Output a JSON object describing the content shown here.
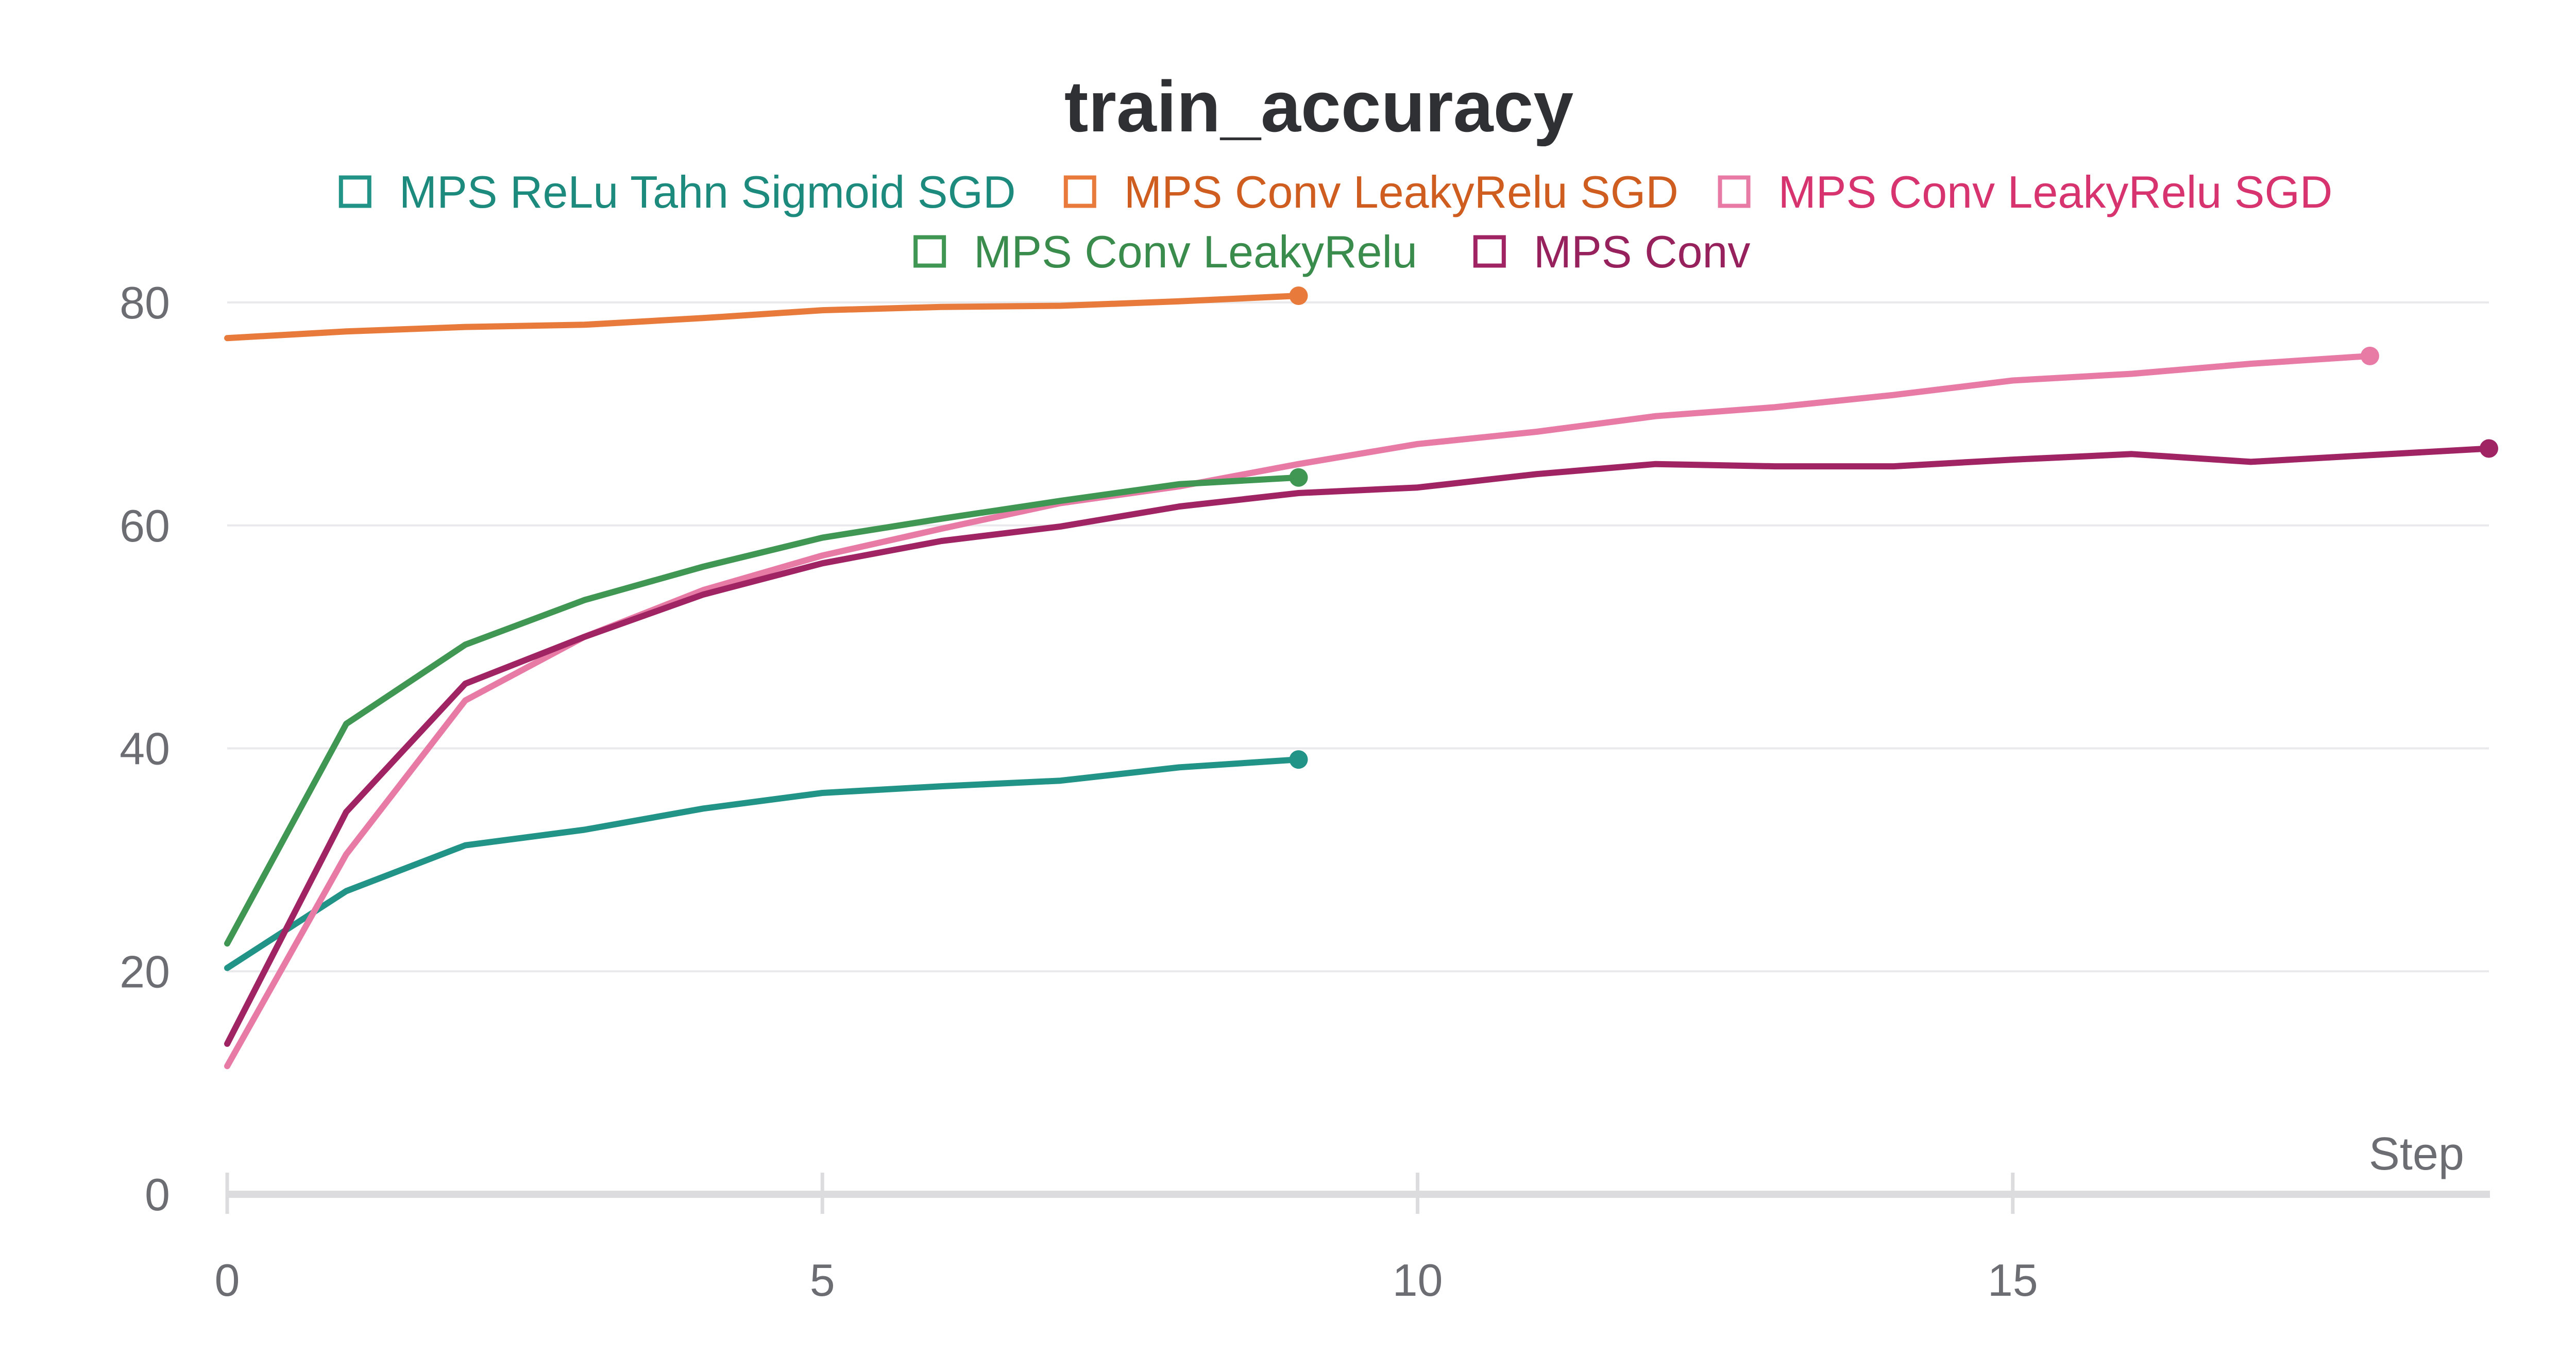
{
  "chart_data": {
    "type": "line",
    "title": "train_accuracy",
    "xlabel": "Step",
    "ylabel": "",
    "xlim": [
      0,
      19
    ],
    "ylim": [
      0,
      80
    ],
    "x_ticks": [
      0,
      5,
      10,
      15
    ],
    "y_ticks": [
      0,
      20,
      40,
      60,
      80
    ],
    "grid": true,
    "legend_position": "top",
    "series": [
      {
        "name": "MPS ReLu Tahn Sigmoid SGD",
        "color": "#229487",
        "label_color": "#1d8a7e",
        "x": [
          0,
          1,
          2,
          3,
          4,
          5,
          6,
          7,
          8,
          9
        ],
        "values": [
          20.3,
          27.2,
          31.3,
          32.7,
          34.6,
          36.0,
          36.6,
          37.1,
          38.3,
          39.0
        ]
      },
      {
        "name": "MPS Conv LeakyRelu SGD",
        "color": "#e87b3b",
        "label_color": "#cf5d20",
        "x": [
          0,
          1,
          2,
          3,
          4,
          5,
          6,
          7,
          8,
          9
        ],
        "values": [
          76.8,
          77.4,
          77.8,
          78.0,
          78.6,
          79.3,
          79.6,
          79.7,
          80.1,
          80.6
        ]
      },
      {
        "name": "MPS Conv LeakyRelu SGD",
        "color": "#e87ba6",
        "label_color": "#d6336f",
        "x": [
          0,
          1,
          2,
          3,
          4,
          5,
          6,
          7,
          8,
          9,
          10,
          11,
          12,
          13,
          14,
          15,
          16,
          17,
          18
        ],
        "values": [
          11.5,
          30.5,
          44.3,
          50.0,
          54.2,
          57.3,
          59.7,
          62.0,
          63.5,
          65.5,
          67.3,
          68.4,
          69.8,
          70.6,
          71.7,
          73.0,
          73.6,
          74.5,
          75.2
        ]
      },
      {
        "name": "MPS Conv LeakyRelu",
        "color": "#3f9753",
        "label_color": "#3a8c4d",
        "x": [
          0,
          1,
          2,
          3,
          4,
          5,
          6,
          7,
          8,
          9
        ],
        "values": [
          22.5,
          42.2,
          49.3,
          53.3,
          56.3,
          58.9,
          60.6,
          62.2,
          63.7,
          64.3
        ]
      },
      {
        "name": "MPS Conv",
        "color": "#a02463",
        "label_color": "#96215c",
        "x": [
          0,
          1,
          2,
          3,
          4,
          5,
          6,
          7,
          8,
          9,
          10,
          11,
          12,
          13,
          14,
          15,
          16,
          17,
          18,
          19
        ],
        "values": [
          13.5,
          34.3,
          45.8,
          50.0,
          53.8,
          56.6,
          58.6,
          59.9,
          61.7,
          62.9,
          63.4,
          64.6,
          65.5,
          65.3,
          65.3,
          65.9,
          66.4,
          65.7,
          66.3,
          66.9
        ]
      }
    ]
  }
}
